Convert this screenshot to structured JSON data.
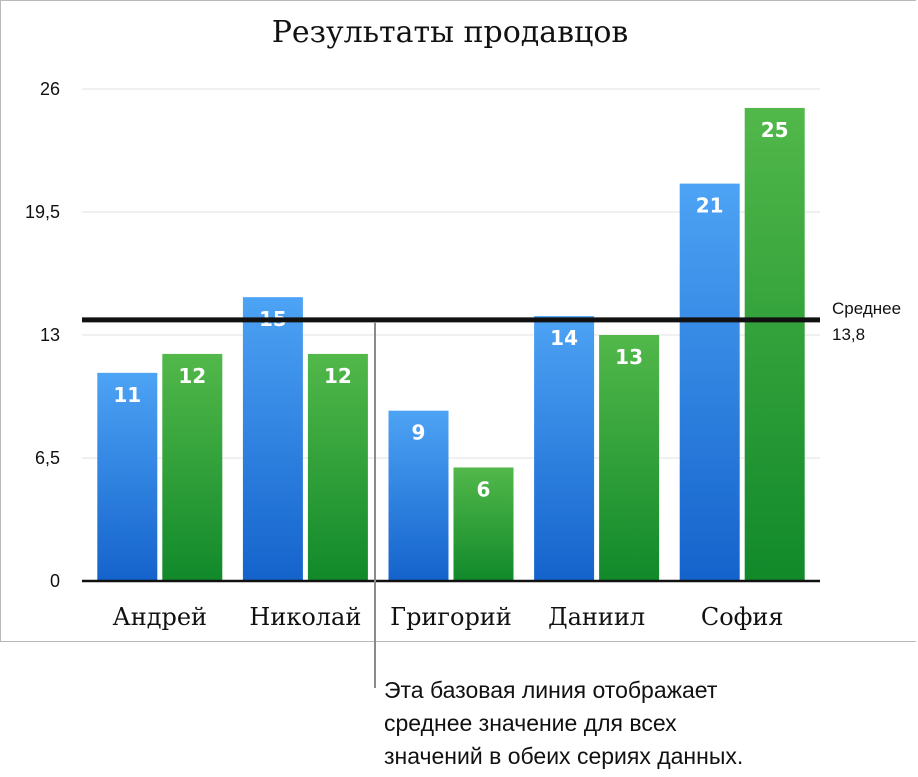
{
  "chart_data": {
    "type": "bar",
    "title": "Результаты продавцов",
    "categories": [
      "Андрей",
      "Николай",
      "Григорий",
      "Даниил",
      "София"
    ],
    "series": [
      {
        "values": [
          11,
          15,
          9,
          14,
          21
        ],
        "color": "#3d8fe6"
      },
      {
        "values": [
          12,
          12,
          6,
          13,
          25
        ],
        "color": "#3aa43c"
      }
    ],
    "data_labels": [
      "11",
      "12",
      "15",
      "12",
      "9",
      "6",
      "14",
      "13",
      "21",
      "25"
    ],
    "ylim": [
      0,
      26
    ],
    "yticks": [
      "0",
      "6,5",
      "13",
      "19,5",
      "26"
    ],
    "reference_line": {
      "value": 13.8,
      "label": "Среднее",
      "value_label": "13,8"
    },
    "grid": true
  },
  "callout": {
    "lines": [
      "Эта базовая линия отображает",
      "среднее значение для всех",
      "значений в обеих сериях данных."
    ]
  }
}
